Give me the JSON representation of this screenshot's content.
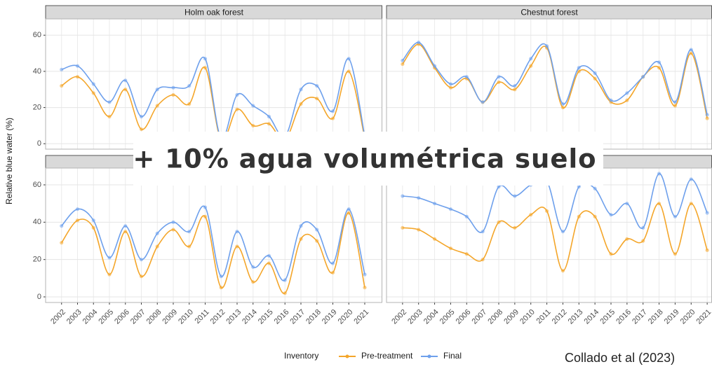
{
  "chart_data": [
    {
      "type": "line",
      "title": "Holm oak forest",
      "x": [
        2002,
        2003,
        2004,
        2005,
        2006,
        2007,
        2008,
        2009,
        2010,
        2011,
        2012,
        2013,
        2014,
        2015,
        2016,
        2017,
        2018,
        2019,
        2020,
        2021
      ],
      "xlim": [
        2001,
        2022.1
      ],
      "xticks": [
        2002,
        2003,
        2004,
        2005,
        2006,
        2007,
        2008,
        2009,
        2010,
        2011,
        2012,
        2013,
        2014,
        2015,
        2016,
        2017,
        2018,
        2019,
        2020,
        2021
      ],
      "ylim": [
        -3,
        69
      ],
      "yticks": [
        0,
        20,
        40,
        60
      ],
      "grid": true,
      "series": [
        {
          "name": "Pre-treatment",
          "color": "#f4a62a",
          "values": [
            32,
            37,
            28,
            15,
            30,
            8,
            21,
            27,
            22,
            42,
            2,
            19,
            10,
            11,
            2,
            22,
            25,
            14,
            40,
            3
          ]
        },
        {
          "name": "Final",
          "color": "#6ea0ec",
          "values": [
            41,
            43,
            33,
            23,
            35,
            15,
            30,
            31,
            32,
            47,
            3,
            27,
            21,
            15,
            4,
            30,
            32,
            18,
            47,
            4
          ]
        }
      ]
    },
    {
      "type": "line",
      "title": "Chestnut forest",
      "x": [
        2002,
        2003,
        2004,
        2005,
        2006,
        2007,
        2008,
        2009,
        2010,
        2011,
        2012,
        2013,
        2014,
        2015,
        2016,
        2017,
        2018,
        2019,
        2020,
        2021
      ],
      "xlim": [
        2001,
        2021.3
      ],
      "xticks": [
        2002,
        2003,
        2004,
        2005,
        2006,
        2007,
        2008,
        2009,
        2010,
        2011,
        2012,
        2013,
        2014,
        2015,
        2016,
        2017,
        2018,
        2019,
        2020,
        2021
      ],
      "ylim": [
        -3,
        69
      ],
      "yticks": [
        0,
        20,
        40,
        60
      ],
      "grid": true,
      "series": [
        {
          "name": "Pre-treatment",
          "color": "#f4a62a",
          "values": [
            44,
            55,
            42,
            31,
            36,
            23,
            34,
            30,
            43,
            53,
            20,
            40,
            36,
            23,
            24,
            37,
            42,
            21,
            50,
            14
          ]
        },
        {
          "name": "Final",
          "color": "#6ea0ec",
          "values": [
            46,
            56,
            43,
            33,
            37,
            23,
            37,
            32,
            47,
            54,
            22,
            42,
            39,
            24,
            28,
            37,
            45,
            23,
            52,
            16
          ]
        }
      ]
    },
    {
      "type": "line",
      "x": [
        2002,
        2003,
        2004,
        2005,
        2006,
        2007,
        2008,
        2009,
        2010,
        2011,
        2012,
        2013,
        2014,
        2015,
        2016,
        2017,
        2018,
        2019,
        2020,
        2021
      ],
      "xlim": [
        2001,
        2022.1
      ],
      "xticks": [
        2002,
        2003,
        2004,
        2005,
        2006,
        2007,
        2008,
        2009,
        2010,
        2011,
        2012,
        2013,
        2014,
        2015,
        2016,
        2017,
        2018,
        2019,
        2020,
        2021
      ],
      "ylim": [
        -3,
        69
      ],
      "yticks": [
        0,
        20,
        40,
        60
      ],
      "grid": true,
      "series": [
        {
          "name": "Pre-treatment",
          "color": "#f4a62a",
          "values": [
            29,
            41,
            37,
            12,
            35,
            11,
            27,
            36,
            27,
            43,
            5,
            27,
            8,
            18,
            2,
            31,
            30,
            13,
            45,
            5
          ]
        },
        {
          "name": "Final",
          "color": "#6ea0ec",
          "values": [
            38,
            47,
            41,
            21,
            38,
            20,
            34,
            40,
            35,
            48,
            11,
            35,
            16,
            22,
            9,
            38,
            36,
            18,
            47,
            12
          ]
        }
      ]
    },
    {
      "type": "line",
      "x": [
        2002,
        2003,
        2004,
        2005,
        2006,
        2007,
        2008,
        2009,
        2010,
        2011,
        2012,
        2013,
        2014,
        2015,
        2016,
        2017,
        2018,
        2019,
        2020,
        2021
      ],
      "xlim": [
        2001,
        2021.3
      ],
      "xticks": [
        2002,
        2003,
        2004,
        2005,
        2006,
        2007,
        2008,
        2009,
        2010,
        2011,
        2012,
        2013,
        2014,
        2015,
        2016,
        2017,
        2018,
        2019,
        2020,
        2021
      ],
      "ylim": [
        -3,
        69
      ],
      "yticks": [
        0,
        20,
        40,
        60
      ],
      "grid": true,
      "series": [
        {
          "name": "Pre-treatment",
          "color": "#f4a62a",
          "values": [
            37,
            36,
            31,
            26,
            23,
            20,
            40,
            37,
            44,
            46,
            14,
            43,
            43,
            23,
            31,
            30,
            50,
            23,
            50,
            25
          ]
        },
        {
          "name": "Final",
          "color": "#6ea0ec",
          "values": [
            54,
            53,
            50,
            47,
            43,
            35,
            59,
            54,
            60,
            62,
            35,
            59,
            58,
            44,
            50,
            37,
            66,
            43,
            63,
            45
          ]
        }
      ]
    }
  ],
  "y_label": "Relative blue water (%)",
  "legend_title": "Inventory",
  "overlay": "+ 10% agua volumétrica suelo",
  "credit": "Collado et al (2023)"
}
